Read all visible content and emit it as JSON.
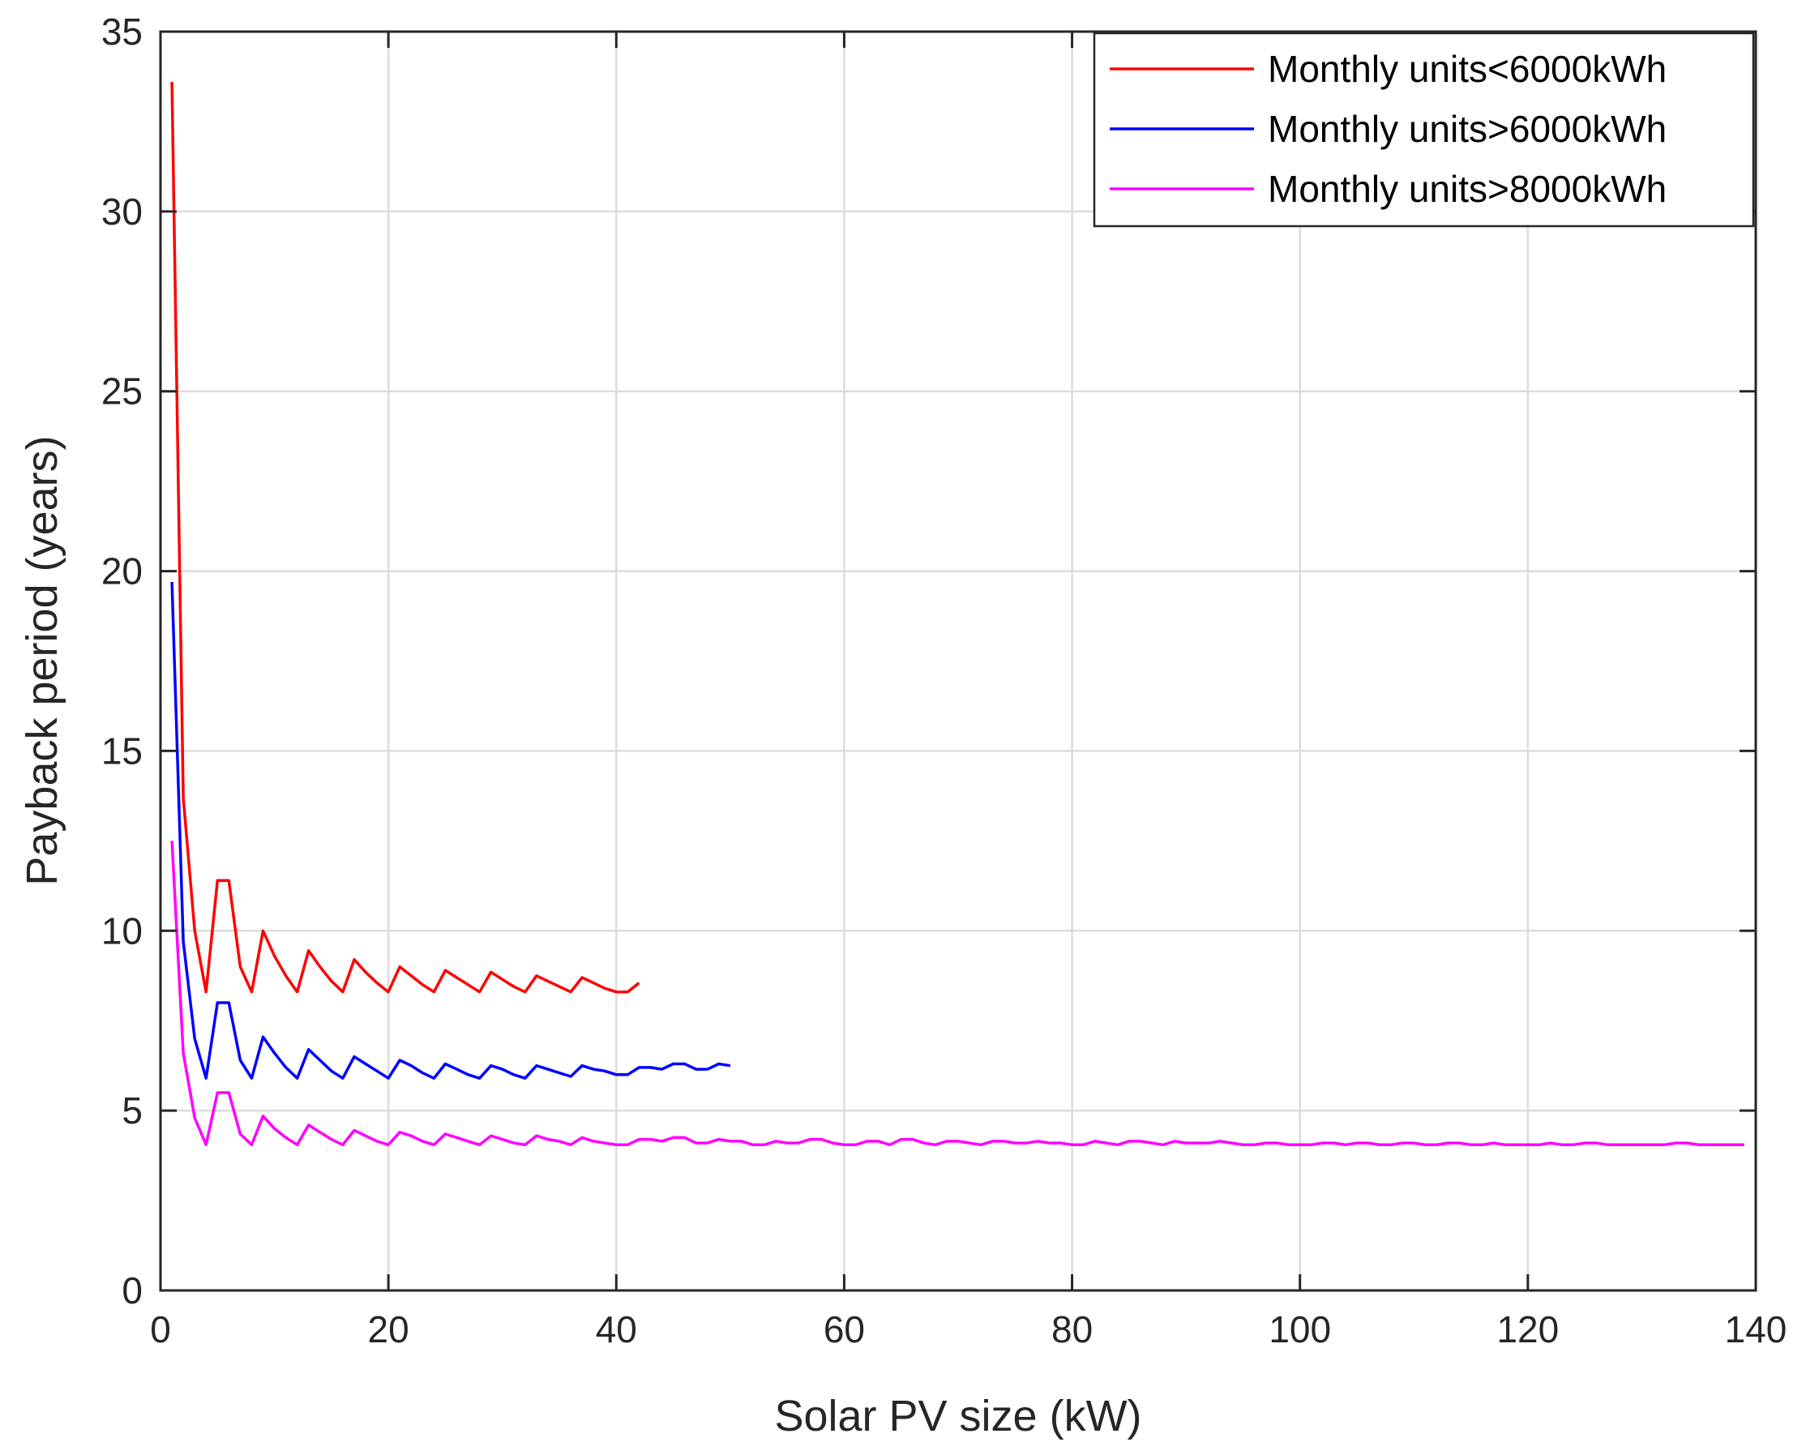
{
  "chart_data": {
    "type": "line",
    "title": "",
    "xlabel": "Solar PV size (kW)",
    "ylabel": "Payback period (years)",
    "xlim": [
      0,
      140
    ],
    "ylim": [
      0,
      35
    ],
    "xticks": [
      0,
      20,
      40,
      60,
      80,
      100,
      120,
      140
    ],
    "yticks": [
      0,
      5,
      10,
      15,
      20,
      25,
      30,
      35
    ],
    "grid": true,
    "legend_position": "top-right",
    "series": [
      {
        "name": "Monthly units<6000kWh",
        "color": "#ff0000",
        "x": [
          1,
          2,
          3,
          4,
          5,
          6,
          7,
          8,
          9,
          10,
          11,
          12,
          13,
          14,
          15,
          16,
          17,
          18,
          19,
          20,
          21,
          22,
          23,
          24,
          25,
          26,
          27,
          28,
          29,
          30,
          31,
          32,
          33,
          34,
          35,
          36,
          37,
          38,
          39,
          40,
          41,
          42
        ],
        "y": [
          33.6,
          13.7,
          10.0,
          8.3,
          11.4,
          11.4,
          9.0,
          8.3,
          10.0,
          9.3,
          8.75,
          8.3,
          9.45,
          9.0,
          8.6,
          8.3,
          9.2,
          8.85,
          8.55,
          8.3,
          9.0,
          8.75,
          8.5,
          8.3,
          8.9,
          8.7,
          8.5,
          8.3,
          8.85,
          8.65,
          8.45,
          8.3,
          8.75,
          8.6,
          8.45,
          8.3,
          8.7,
          8.55,
          8.4,
          8.3,
          8.3,
          8.55
        ]
      },
      {
        "name": "Monthly units>6000kWh",
        "color": "#0000ff",
        "x": [
          1,
          2,
          3,
          4,
          5,
          6,
          7,
          8,
          9,
          10,
          11,
          12,
          13,
          14,
          15,
          16,
          17,
          18,
          19,
          20,
          21,
          22,
          23,
          24,
          25,
          26,
          27,
          28,
          29,
          30,
          31,
          32,
          33,
          34,
          35,
          36,
          37,
          38,
          39,
          40,
          41,
          42,
          43,
          44,
          45,
          46,
          47,
          48,
          49,
          50
        ],
        "y": [
          19.7,
          9.7,
          7.0,
          5.9,
          8.0,
          8.0,
          6.4,
          5.9,
          7.05,
          6.6,
          6.2,
          5.9,
          6.7,
          6.4,
          6.1,
          5.9,
          6.5,
          6.3,
          6.1,
          5.9,
          6.4,
          6.25,
          6.05,
          5.9,
          6.3,
          6.15,
          6.0,
          5.9,
          6.25,
          6.15,
          6.0,
          5.9,
          6.25,
          6.15,
          6.05,
          5.95,
          6.25,
          6.15,
          6.1,
          6.0,
          6.0,
          6.2,
          6.2,
          6.15,
          6.3,
          6.3,
          6.15,
          6.15,
          6.3,
          6.25
        ]
      },
      {
        "name": "Monthly units>8000kWh",
        "color": "#ff00ff",
        "x": [
          1,
          2,
          3,
          4,
          5,
          6,
          7,
          8,
          9,
          10,
          11,
          12,
          13,
          14,
          15,
          16,
          17,
          18,
          19,
          20,
          21,
          22,
          23,
          24,
          25,
          26,
          27,
          28,
          29,
          30,
          31,
          32,
          33,
          34,
          35,
          36,
          37,
          38,
          39,
          40,
          41,
          42,
          43,
          44,
          45,
          46,
          47,
          48,
          49,
          50,
          51,
          52,
          53,
          54,
          55,
          56,
          57,
          58,
          59,
          60,
          61,
          62,
          63,
          64,
          65,
          66,
          67,
          68,
          69,
          70,
          71,
          72,
          73,
          74,
          75,
          76,
          77,
          78,
          79,
          80,
          81,
          82,
          83,
          84,
          85,
          86,
          87,
          88,
          89,
          90,
          91,
          92,
          93,
          94,
          95,
          96,
          97,
          98,
          99,
          100,
          101,
          102,
          103,
          104,
          105,
          106,
          107,
          108,
          109,
          110,
          111,
          112,
          113,
          114,
          115,
          116,
          117,
          118,
          119,
          120,
          121,
          122,
          123,
          124,
          125,
          126,
          127,
          128,
          129,
          130,
          131,
          132,
          133,
          134,
          135,
          136,
          137,
          138,
          139
        ],
        "y": [
          12.5,
          6.6,
          4.8,
          4.05,
          5.5,
          5.5,
          4.35,
          4.05,
          4.85,
          4.5,
          4.25,
          4.05,
          4.6,
          4.4,
          4.2,
          4.05,
          4.45,
          4.3,
          4.15,
          4.05,
          4.4,
          4.3,
          4.15,
          4.05,
          4.35,
          4.25,
          4.15,
          4.05,
          4.3,
          4.2,
          4.1,
          4.05,
          4.3,
          4.2,
          4.15,
          4.05,
          4.25,
          4.15,
          4.1,
          4.05,
          4.05,
          4.2,
          4.2,
          4.15,
          4.25,
          4.25,
          4.1,
          4.1,
          4.2,
          4.15,
          4.15,
          4.05,
          4.05,
          4.15,
          4.1,
          4.1,
          4.2,
          4.2,
          4.1,
          4.05,
          4.05,
          4.15,
          4.15,
          4.05,
          4.2,
          4.2,
          4.1,
          4.05,
          4.15,
          4.15,
          4.1,
          4.05,
          4.15,
          4.15,
          4.1,
          4.1,
          4.15,
          4.1,
          4.1,
          4.05,
          4.05,
          4.15,
          4.1,
          4.05,
          4.15,
          4.15,
          4.1,
          4.05,
          4.15,
          4.1,
          4.1,
          4.1,
          4.15,
          4.1,
          4.05,
          4.05,
          4.1,
          4.1,
          4.05,
          4.05,
          4.05,
          4.1,
          4.1,
          4.05,
          4.1,
          4.1,
          4.05,
          4.05,
          4.1,
          4.1,
          4.05,
          4.05,
          4.1,
          4.1,
          4.05,
          4.05,
          4.1,
          4.05,
          4.05,
          4.05,
          4.05,
          4.1,
          4.05,
          4.05,
          4.1,
          4.1,
          4.05,
          4.05,
          4.05,
          4.05,
          4.05,
          4.05,
          4.1,
          4.1,
          4.05,
          4.05,
          4.05,
          4.05,
          4.05
        ]
      }
    ]
  }
}
